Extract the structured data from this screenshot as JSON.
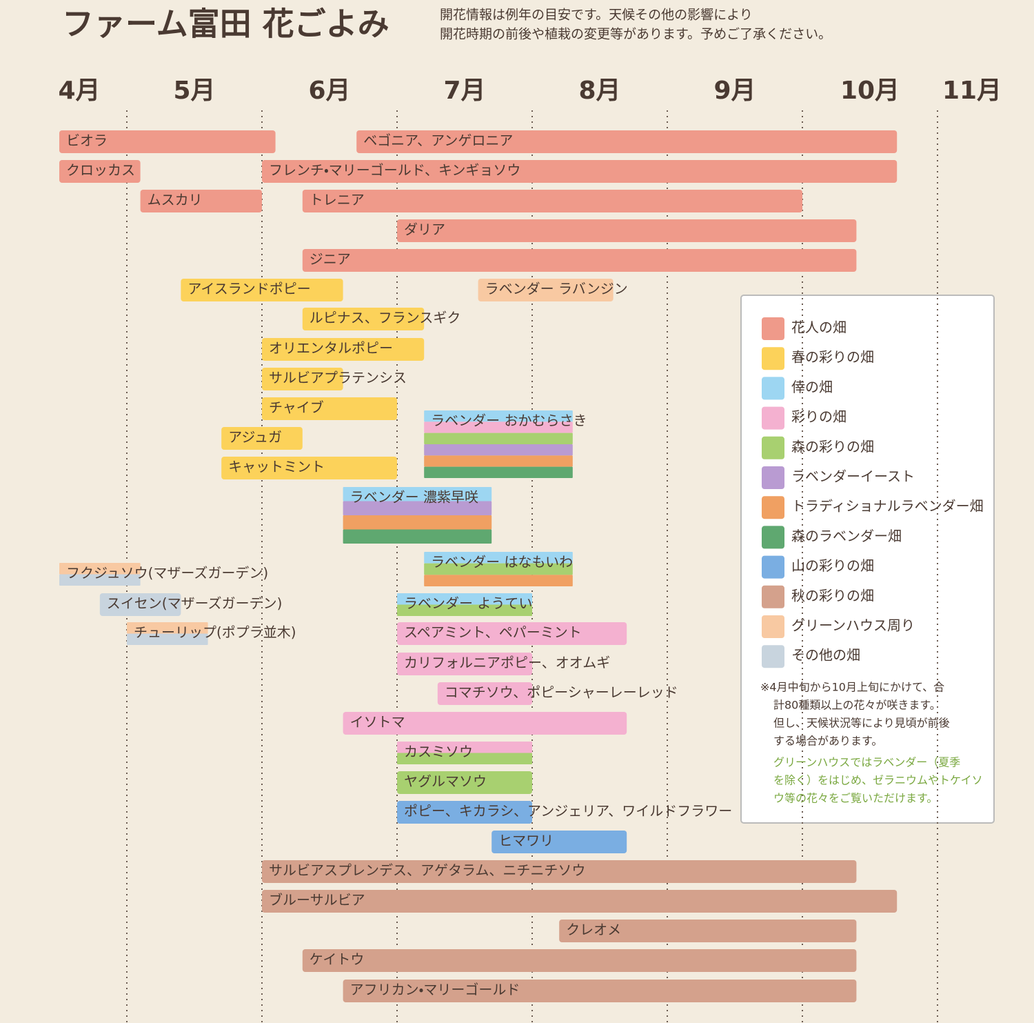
{
  "chart_data": {
    "type": "gantt",
    "title": "ファーム富田 花ごよみ",
    "subtitle": [
      "開花情報は例年の目安です。天候その他の影響により",
      "開花時期の前後や植栽の変更等があります。予めご了承ください。"
    ],
    "xlim": [
      4,
      11
    ],
    "xticks": [
      {
        "value": 4,
        "label": "4月"
      },
      {
        "value": 5,
        "label": "5月"
      },
      {
        "value": 6,
        "label": "6月"
      },
      {
        "value": 7,
        "label": "7月"
      },
      {
        "value": 8,
        "label": "8月"
      },
      {
        "value": 9,
        "label": "9月"
      },
      {
        "value": 10,
        "label": "10月"
      },
      {
        "value": 11,
        "label": "11月"
      }
    ],
    "xgrid": [
      4.5,
      5.5,
      6.5,
      7.5,
      8.5,
      9.5,
      10.5
    ],
    "legend": [
      {
        "name": "花人の畑",
        "color": "#ef9a8a"
      },
      {
        "name": "春の彩りの畑",
        "color": "#fcd25a"
      },
      {
        "name": "倖の畑",
        "color": "#9dd6f2"
      },
      {
        "name": "彩りの畑",
        "color": "#f4b1d0"
      },
      {
        "name": "森の彩りの畑",
        "color": "#a8d070"
      },
      {
        "name": "ラベンダーイースト",
        "color": "#b99bd2"
      },
      {
        "name": "トラディショナルラベンダー畑",
        "color": "#f0a062"
      },
      {
        "name": "森のラベンダー畑",
        "color": "#5fa870"
      },
      {
        "name": "山の彩りの畑",
        "color": "#7aaee2"
      },
      {
        "name": "秋の彩りの畑",
        "color": "#d4a18c"
      },
      {
        "name": "グリーンハウス周り",
        "color": "#f8c9a2"
      },
      {
        "name": "その他の畑",
        "color": "#c8d4de"
      }
    ],
    "note": [
      "※4月中旬から10月上旬にかけて、合",
      "計80種類以上の花々が咲きます。",
      "但し、天候状況等により見頃が前後",
      "する場合があります。"
    ],
    "note_green": [
      "グリーンハウスではラベンダー（夏季",
      "を除く）をはじめ、ゼラニウムやトケイソ",
      "ウ等の花々をご覧いただけます。"
    ],
    "bars": [
      {
        "name": "ビオラ",
        "start": 4.0,
        "end": 5.6,
        "colors": [
          "#ef9a8a"
        ]
      },
      {
        "name": "ベゴニア、アンゲロニア",
        "start": 6.2,
        "end": 10.2,
        "colors": [
          "#ef9a8a"
        ]
      },
      {
        "name": "クロッカス",
        "start": 4.0,
        "end": 4.6,
        "colors": [
          "#ef9a8a"
        ]
      },
      {
        "name": "フレンチ・マリーゴールド、キンギョソウ",
        "start": 5.5,
        "end": 10.2,
        "colors": [
          "#ef9a8a"
        ]
      },
      {
        "name": "ムスカリ",
        "start": 4.6,
        "end": 5.5,
        "colors": [
          "#ef9a8a"
        ]
      },
      {
        "name": "トレニア",
        "start": 5.8,
        "end": 9.5,
        "colors": [
          "#ef9a8a"
        ]
      },
      {
        "name": "ダリア",
        "start": 6.5,
        "end": 9.9,
        "colors": [
          "#ef9a8a"
        ]
      },
      {
        "name": "ジニア",
        "start": 5.8,
        "end": 9.9,
        "colors": [
          "#ef9a8a"
        ]
      },
      {
        "name": "アイスランドポピー",
        "start": 4.9,
        "end": 6.1,
        "colors": [
          "#fcd25a"
        ]
      },
      {
        "name": "ラベンダー ラバンジン",
        "start": 7.1,
        "end": 8.1,
        "colors": [
          "#f8c9a2"
        ]
      },
      {
        "name": "ルピナス、フランスギク",
        "start": 5.8,
        "end": 6.7,
        "colors": [
          "#fcd25a"
        ]
      },
      {
        "name": "オリエンタルポピー",
        "start": 5.5,
        "end": 6.7,
        "colors": [
          "#fcd25a"
        ]
      },
      {
        "name": "サルビアプラテンシス",
        "start": 5.5,
        "end": 6.1,
        "colors": [
          "#fcd25a"
        ]
      },
      {
        "name": "チャイブ",
        "start": 5.5,
        "end": 6.5,
        "colors": [
          "#fcd25a"
        ]
      },
      {
        "name": "ラベンダー おかむらさき",
        "start": 6.7,
        "end": 7.8,
        "colors": [
          "#9dd6f2",
          "#f4b1d0",
          "#a8d070",
          "#b99bd2",
          "#f0a062",
          "#5fa870"
        ]
      },
      {
        "name": "アジュガ",
        "start": 5.2,
        "end": 5.8,
        "colors": [
          "#fcd25a"
        ]
      },
      {
        "name": "キャットミント",
        "start": 5.2,
        "end": 6.5,
        "colors": [
          "#fcd25a"
        ]
      },
      {
        "name": "ラベンダー 濃紫早咲",
        "start": 6.1,
        "end": 7.2,
        "colors": [
          "#9dd6f2",
          "#b99bd2",
          "#f0a062",
          "#5fa870"
        ]
      },
      {
        "name": "ラベンダー はなもいわ",
        "start": 6.7,
        "end": 7.8,
        "colors": [
          "#9dd6f2",
          "#a8d070",
          "#f0a062"
        ]
      },
      {
        "name": "フクジュソウ(マザーズガーデン)",
        "start": 4.0,
        "end": 4.6,
        "colors": [
          "#f8c9a2",
          "#c8d4de"
        ]
      },
      {
        "name": "スイセン(マザーズガーデン)",
        "start": 4.3,
        "end": 4.9,
        "colors": [
          "#c8d4de"
        ]
      },
      {
        "name": "ラベンダー ようてい",
        "start": 6.5,
        "end": 7.5,
        "colors": [
          "#9dd6f2",
          "#a8d070"
        ]
      },
      {
        "name": "チューリップ(ポプラ並木)",
        "start": 4.5,
        "end": 5.1,
        "colors": [
          "#f8c9a2",
          "#c8d4de"
        ]
      },
      {
        "name": "スペアミント、ペパーミント",
        "start": 6.5,
        "end": 8.2,
        "colors": [
          "#f4b1d0"
        ]
      },
      {
        "name": "カリフォルニアポピー、オオムギ",
        "start": 6.5,
        "end": 7.5,
        "colors": [
          "#f4b1d0"
        ]
      },
      {
        "name": "コマチソウ、ポピーシャーレーレッド",
        "start": 6.8,
        "end": 7.5,
        "colors": [
          "#f4b1d0"
        ]
      },
      {
        "name": "イソトマ",
        "start": 6.1,
        "end": 8.2,
        "colors": [
          "#f4b1d0"
        ]
      },
      {
        "name": "カスミソウ",
        "start": 6.5,
        "end": 7.5,
        "colors": [
          "#f4b1d0",
          "#a8d070"
        ]
      },
      {
        "name": "ヤグルマソウ",
        "start": 6.5,
        "end": 7.5,
        "colors": [
          "#a8d070"
        ]
      },
      {
        "name": "ポピー、キカラシ、アンジェリア、ワイルドフラワー",
        "start": 6.5,
        "end": 7.5,
        "colors": [
          "#7aaee2"
        ]
      },
      {
        "name": "ヒマワリ",
        "start": 7.2,
        "end": 8.2,
        "colors": [
          "#7aaee2"
        ]
      },
      {
        "name": "サルビアスプレンデス、アゲタラム、ニチニチソウ",
        "start": 5.5,
        "end": 9.9,
        "colors": [
          "#d4a18c"
        ]
      },
      {
        "name": "ブルーサルビア",
        "start": 5.5,
        "end": 10.2,
        "colors": [
          "#d4a18c"
        ]
      },
      {
        "name": "クレオメ",
        "start": 7.7,
        "end": 9.9,
        "colors": [
          "#d4a18c"
        ]
      },
      {
        "name": "ケイトウ",
        "start": 5.8,
        "end": 9.9,
        "colors": [
          "#d4a18c"
        ]
      },
      {
        "name": "アフリカン・マリーゴールド",
        "start": 6.1,
        "end": 9.9,
        "colors": [
          "#d4a18c"
        ]
      }
    ]
  }
}
